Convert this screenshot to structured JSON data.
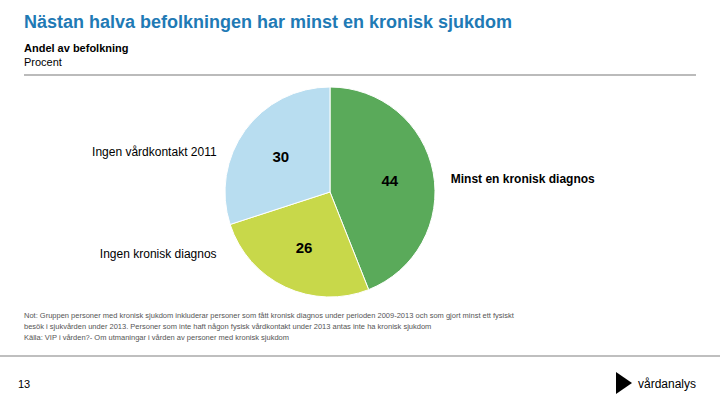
{
  "chart_data": {
    "type": "pie",
    "title": "Nästan halva befolkningen har minst en kronisk sjukdom",
    "subtitle": [
      "Andel av befolkning",
      "Procent"
    ],
    "categories": [
      "Minst en kronisk diagnos",
      "Ingen kronisk diagnos",
      "Ingen vårdkontakt 2011"
    ],
    "values": [
      44,
      26,
      30
    ],
    "colors": [
      "#5aaa5a",
      "#c8d84a",
      "#b8ddf0"
    ],
    "data_labels": true,
    "note": [
      "Not: Gruppen personer med kronisk sjukdom inkluderar personer som fått kronisk diagnos under perioden 2009-2013 och som gjort minst ett fysiskt",
      "besök i sjukvården under 2013. Personer som inte haft någon fysisk vårdkontakt under 2013 antas inte ha kronisk sjukdom",
      "Källa: VIP i vården?- Om utmaningar i vården av personer med kronisk sjukdom"
    ]
  },
  "page_number": "13",
  "brand": "vårdanalys"
}
